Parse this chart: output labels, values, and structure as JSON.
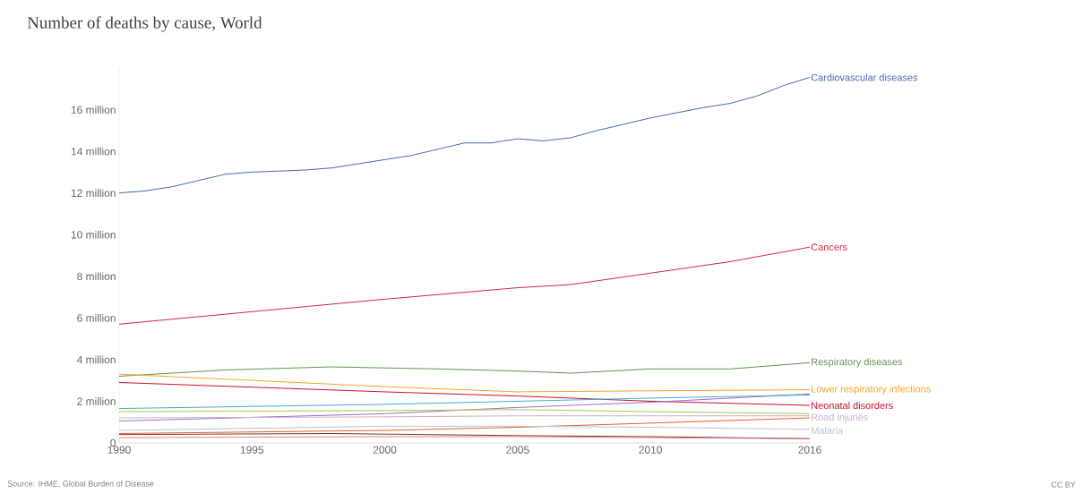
{
  "chart_data": {
    "type": "line",
    "title": "Number of deaths by cause, World",
    "xlim": [
      1990,
      2016
    ],
    "ylim": [
      0,
      18
    ],
    "xticks": [
      1990,
      1995,
      2000,
      2005,
      2010,
      2016
    ],
    "yticks": [
      0,
      {
        "value": 2,
        "label": "2 million"
      },
      {
        "value": 4,
        "label": "4 million"
      },
      {
        "value": 6,
        "label": "6 million"
      },
      {
        "value": 8,
        "label": "8 million"
      },
      {
        "value": 10,
        "label": "10 million"
      },
      {
        "value": 12,
        "label": "12 million"
      },
      {
        "value": 14,
        "label": "14 million"
      },
      {
        "value": 16,
        "label": "16 million"
      }
    ],
    "marker": "none",
    "line_style": "solid",
    "annotations": [
      "Source: IHME, Global Burden of Disease",
      "CC BY"
    ],
    "series": [
      {
        "name": "Cardiovascular diseases",
        "color": "#4a67a8",
        "x": [
          1990,
          1991,
          1992,
          1993,
          1994,
          1995,
          1996,
          1997,
          1998,
          1999,
          2000,
          2001,
          2002,
          2003,
          2004,
          2005,
          2006,
          2007,
          2008,
          2009,
          2010,
          2011,
          2012,
          2013,
          2014,
          2015,
          2016
        ],
        "values": [
          12.0,
          12.1,
          12.3,
          12.6,
          12.9,
          13.0,
          13.05,
          13.1,
          13.2,
          13.4,
          13.6,
          13.8,
          14.1,
          14.4,
          14.4,
          14.6,
          14.5,
          14.65,
          15.0,
          15.3,
          15.6,
          15.85,
          16.1,
          16.3,
          16.65,
          17.15,
          17.55
        ]
      },
      {
        "name": "Cancers",
        "color": "#d0254c",
        "x": [
          1990,
          1995,
          2000,
          2005,
          2007,
          2010,
          2013,
          2016
        ],
        "values": [
          5.7,
          6.3,
          6.9,
          7.45,
          7.6,
          8.15,
          8.7,
          9.4
        ]
      },
      {
        "name": "Respiratory diseases",
        "color": "#5e9450",
        "x": [
          1990,
          1994,
          1998,
          2002,
          2005,
          2007,
          2010,
          2013,
          2016
        ],
        "values": [
          3.2,
          3.5,
          3.65,
          3.55,
          3.45,
          3.35,
          3.55,
          3.55,
          3.85
        ]
      },
      {
        "name": "Lower respiratory infections",
        "color": "#f2a52a",
        "x": [
          1990,
          1995,
          2000,
          2005,
          2010,
          2016
        ],
        "values": [
          3.3,
          3.0,
          2.7,
          2.45,
          2.5,
          2.55
        ]
      },
      {
        "name": "Neonatal disorders",
        "color": "#c8102e",
        "x": [
          1990,
          2000,
          2005,
          2010,
          2016
        ],
        "values": [
          2.9,
          2.45,
          2.25,
          2.0,
          1.8
        ]
      },
      {
        "color": "#9a6fd0",
        "x": [
          1990,
          2000,
          2005,
          2010,
          2016
        ],
        "values": [
          1.05,
          1.4,
          1.7,
          1.95,
          2.35
        ]
      },
      {
        "color": "#3fb0c8",
        "x": [
          1990,
          2000,
          2005,
          2010,
          2016
        ],
        "values": [
          1.65,
          1.85,
          2.0,
          2.15,
          2.3
        ]
      },
      {
        "color": "#a6c84a",
        "x": [
          1990,
          2000,
          2005,
          2010,
          2016
        ],
        "values": [
          1.5,
          1.55,
          1.6,
          1.5,
          1.4
        ]
      },
      {
        "name": "Road injuries",
        "color": "#c9b0c8",
        "x": [
          1990,
          2000,
          2005,
          2010,
          2016
        ],
        "values": [
          1.2,
          1.25,
          1.3,
          1.3,
          1.3
        ]
      },
      {
        "color": "#e8602c",
        "x": [
          1990,
          2000,
          2005,
          2010,
          2016
        ],
        "values": [
          0.45,
          0.6,
          0.75,
          0.95,
          1.2
        ]
      },
      {
        "name": "Malaria",
        "color": "#b8c4d0",
        "x": [
          1990,
          2000,
          2005,
          2010,
          2016
        ],
        "values": [
          0.6,
          0.8,
          0.8,
          0.75,
          0.65
        ]
      },
      {
        "color": "#6b3a2a",
        "x": [
          1990,
          1998,
          2005,
          2010,
          2016
        ],
        "values": [
          0.4,
          0.45,
          0.35,
          0.3,
          0.2
        ]
      },
      {
        "color": "#e98080",
        "x": [
          1990,
          2000,
          2005,
          2010,
          2016
        ],
        "values": [
          0.25,
          0.3,
          0.3,
          0.25,
          0.2
        ]
      }
    ]
  }
}
